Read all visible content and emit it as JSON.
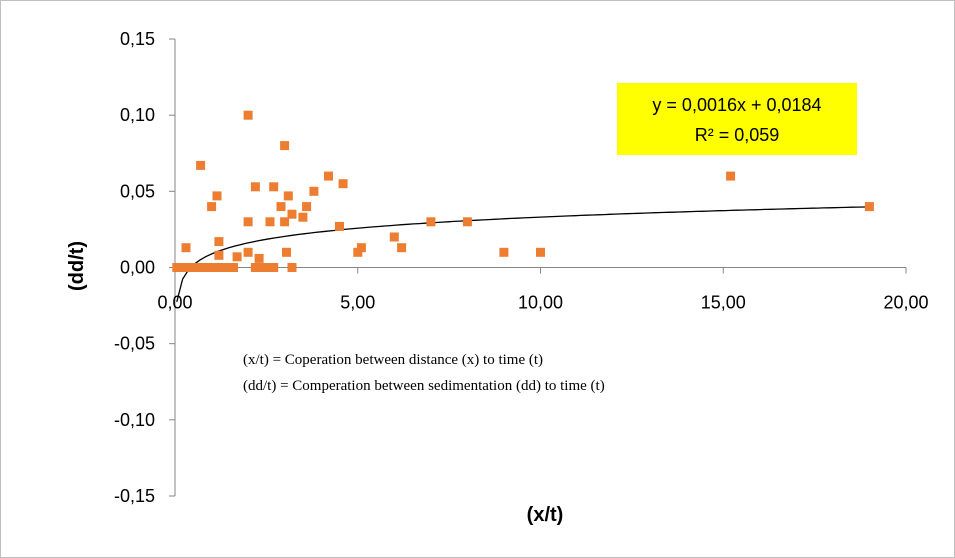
{
  "chart_data": {
    "type": "scatter",
    "xlabel": "(x/t)",
    "ylabel": "(dd/t)",
    "xlim": [
      0,
      20
    ],
    "ylim": [
      -0.15,
      0.15
    ],
    "x_ticks": [
      "0,00",
      "5,00",
      "10,00",
      "15,00",
      "20,00"
    ],
    "y_ticks": [
      "0,15",
      "0,10",
      "0,05",
      "0,00",
      "-0,05",
      "-0,10",
      "-0,15"
    ],
    "grid": false,
    "marker_color": "#ED7D31",
    "trendline_color": "#000000",
    "series": [
      {
        "points": [
          [
            0.05,
            0.0
          ],
          [
            0.1,
            0.0
          ],
          [
            0.2,
            0.0
          ],
          [
            0.3,
            0.013
          ],
          [
            0.4,
            0.0
          ],
          [
            0.5,
            0.0
          ],
          [
            0.6,
            0.0
          ],
          [
            0.7,
            0.067
          ],
          [
            0.8,
            0.0
          ],
          [
            0.9,
            0.0
          ],
          [
            1.0,
            0.0
          ],
          [
            1.0,
            0.04
          ],
          [
            1.1,
            0.0
          ],
          [
            1.15,
            0.047
          ],
          [
            1.2,
            0.017
          ],
          [
            1.2,
            0.008
          ],
          [
            1.3,
            0.0
          ],
          [
            1.4,
            0.0
          ],
          [
            1.5,
            0.0
          ],
          [
            1.6,
            0.0
          ],
          [
            1.7,
            0.007
          ],
          [
            2.0,
            0.1
          ],
          [
            2.0,
            0.03
          ],
          [
            2.0,
            0.01
          ],
          [
            2.2,
            0.0
          ],
          [
            2.2,
            0.053
          ],
          [
            2.3,
            0.0
          ],
          [
            2.3,
            0.006
          ],
          [
            2.4,
            0.0
          ],
          [
            2.5,
            0.0
          ],
          [
            2.6,
            0.03
          ],
          [
            2.7,
            0.053
          ],
          [
            2.7,
            0.0
          ],
          [
            2.9,
            0.04
          ],
          [
            3.0,
            0.08
          ],
          [
            3.0,
            0.03
          ],
          [
            3.05,
            0.01
          ],
          [
            3.1,
            0.047
          ],
          [
            3.2,
            0.035
          ],
          [
            3.2,
            0.0
          ],
          [
            3.5,
            0.033
          ],
          [
            3.6,
            0.04
          ],
          [
            3.8,
            0.05
          ],
          [
            4.2,
            0.06
          ],
          [
            4.5,
            0.027
          ],
          [
            4.6,
            0.055
          ],
          [
            5.0,
            0.01
          ],
          [
            5.1,
            0.013
          ],
          [
            6.0,
            0.02
          ],
          [
            6.2,
            0.013
          ],
          [
            7.0,
            0.03
          ],
          [
            8.0,
            0.03
          ],
          [
            9.0,
            0.01
          ],
          [
            10.0,
            0.01
          ],
          [
            15.2,
            0.06
          ],
          [
            19.0,
            0.04
          ]
        ]
      }
    ],
    "trendline": {
      "equation": "y = 0,0016x + 0,0184",
      "r_squared": "R² = 0,059",
      "box_color": "#FFFF00"
    },
    "annotations": [
      "(x/t) = Coperation between distance (x) to time (t)",
      "(dd/t) = Comperation between sedimentation (dd) to time (t)"
    ]
  }
}
